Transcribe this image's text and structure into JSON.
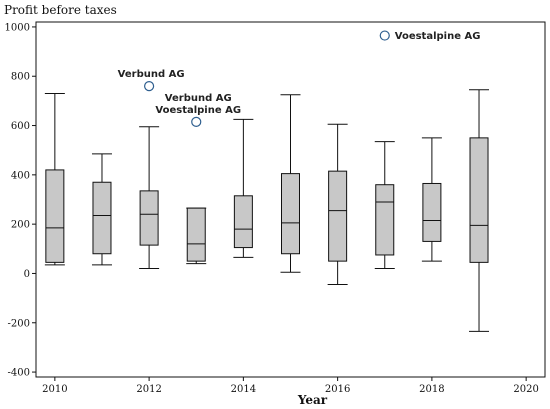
{
  "chart_data": {
    "type": "box",
    "ylabel": "Profit before taxes",
    "xlabel": "Year",
    "xlim": [
      2009.6,
      2020.4
    ],
    "ylim": [
      -420,
      1020
    ],
    "x_ticks": [
      2010,
      2012,
      2014,
      2016,
      2018,
      2020
    ],
    "y_ticks": [
      -400,
      -200,
      0,
      200,
      400,
      600,
      800,
      1000
    ],
    "boxes": [
      {
        "year": 2010,
        "min": 35,
        "q1": 45,
        "median": 185,
        "q3": 420,
        "max": 730
      },
      {
        "year": 2011,
        "min": 35,
        "q1": 80,
        "median": 235,
        "q3": 370,
        "max": 485
      },
      {
        "year": 2012,
        "min": 20,
        "q1": 115,
        "median": 240,
        "q3": 335,
        "max": 595
      },
      {
        "year": 2013,
        "min": 40,
        "q1": 50,
        "median": 120,
        "q3": 265,
        "max": 265
      },
      {
        "year": 2014,
        "min": 65,
        "q1": 105,
        "median": 180,
        "q3": 315,
        "max": 625
      },
      {
        "year": 2015,
        "min": 5,
        "q1": 80,
        "median": 205,
        "q3": 405,
        "max": 725
      },
      {
        "year": 2016,
        "min": -45,
        "q1": 50,
        "median": 255,
        "q3": 415,
        "max": 605
      },
      {
        "year": 2017,
        "min": 20,
        "q1": 75,
        "median": 290,
        "q3": 360,
        "max": 535
      },
      {
        "year": 2018,
        "min": 50,
        "q1": 130,
        "median": 215,
        "q3": 365,
        "max": 550
      },
      {
        "year": 2019,
        "min": -235,
        "q1": 45,
        "median": 195,
        "q3": 550,
        "max": 745
      }
    ],
    "outliers": [
      {
        "year": 2012,
        "value": 760,
        "labels": [
          "Verbund AG"
        ]
      },
      {
        "year": 2013,
        "value": 615,
        "labels": [
          "Verbund AG",
          "Voestalpine AG"
        ]
      },
      {
        "year": 2017,
        "value": 965,
        "labels": [
          "Voestalpine AG"
        ]
      }
    ]
  }
}
